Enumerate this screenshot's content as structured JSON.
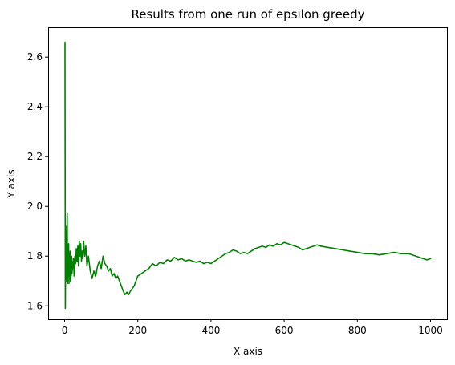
{
  "chart_data": {
    "type": "line",
    "title": "Results from one run of epsilon greedy",
    "xlabel": "X axis",
    "ylabel": "Y axis",
    "xlim": [
      -45,
      1045
    ],
    "ylim": [
      1.546,
      2.72
    ],
    "xticks": [
      0,
      200,
      400,
      600,
      800,
      1000
    ],
    "yticks": [
      1.6,
      1.8,
      2.0,
      2.2,
      2.4,
      2.6
    ],
    "xtick_labels": [
      "0",
      "200",
      "400",
      "600",
      "800",
      "1000"
    ],
    "ytick_labels": [
      "1.6",
      "1.8",
      "2.0",
      "2.2",
      "2.4",
      "2.6"
    ],
    "grid": false,
    "line_color": "#008000",
    "series": [
      {
        "x": [
          1,
          2,
          3,
          4,
          5,
          6,
          7,
          8,
          9,
          10,
          11,
          12,
          13,
          14,
          15,
          16,
          17,
          18,
          19,
          20,
          22,
          24,
          26,
          28,
          30,
          32,
          34,
          36,
          38,
          40,
          42,
          44,
          46,
          48,
          50,
          52,
          55,
          58,
          61,
          65,
          70,
          75,
          80,
          85,
          90,
          95,
          100,
          105,
          110,
          115,
          120,
          125,
          130,
          135,
          140,
          145,
          150,
          155,
          160,
          165,
          170,
          175,
          180,
          185,
          190,
          195,
          200,
          210,
          220,
          230,
          240,
          250,
          260,
          270,
          280,
          290,
          300,
          310,
          320,
          330,
          340,
          350,
          360,
          370,
          380,
          390,
          400,
          410,
          420,
          430,
          440,
          450,
          460,
          470,
          480,
          490,
          500,
          510,
          520,
          530,
          540,
          550,
          560,
          570,
          580,
          590,
          600,
          610,
          620,
          630,
          640,
          650,
          660,
          670,
          680,
          690,
          700,
          720,
          740,
          760,
          780,
          800,
          820,
          840,
          860,
          880,
          900,
          920,
          940,
          960,
          980,
          990,
          1000
        ],
        "y": [
          2.66,
          1.59,
          1.92,
          1.75,
          1.86,
          1.7,
          1.97,
          1.69,
          1.84,
          1.73,
          1.85,
          1.69,
          1.8,
          1.74,
          1.82,
          1.7,
          1.78,
          1.72,
          1.8,
          1.73,
          1.76,
          1.79,
          1.72,
          1.8,
          1.77,
          1.83,
          1.78,
          1.84,
          1.76,
          1.86,
          1.8,
          1.85,
          1.78,
          1.82,
          1.79,
          1.86,
          1.8,
          1.84,
          1.76,
          1.8,
          1.74,
          1.71,
          1.74,
          1.72,
          1.76,
          1.78,
          1.75,
          1.8,
          1.77,
          1.76,
          1.74,
          1.75,
          1.72,
          1.73,
          1.71,
          1.72,
          1.7,
          1.68,
          1.66,
          1.645,
          1.655,
          1.645,
          1.66,
          1.67,
          1.68,
          1.7,
          1.72,
          1.73,
          1.74,
          1.75,
          1.77,
          1.76,
          1.775,
          1.77,
          1.785,
          1.78,
          1.795,
          1.785,
          1.79,
          1.78,
          1.785,
          1.78,
          1.775,
          1.78,
          1.77,
          1.775,
          1.77,
          1.78,
          1.79,
          1.8,
          1.81,
          1.815,
          1.825,
          1.82,
          1.81,
          1.815,
          1.81,
          1.82,
          1.83,
          1.835,
          1.84,
          1.835,
          1.845,
          1.84,
          1.85,
          1.845,
          1.855,
          1.85,
          1.845,
          1.84,
          1.835,
          1.825,
          1.83,
          1.835,
          1.84,
          1.845,
          1.84,
          1.835,
          1.83,
          1.825,
          1.82,
          1.815,
          1.81,
          1.81,
          1.805,
          1.81,
          1.815,
          1.81,
          1.81,
          1.8,
          1.79,
          1.785,
          1.79
        ]
      }
    ]
  }
}
